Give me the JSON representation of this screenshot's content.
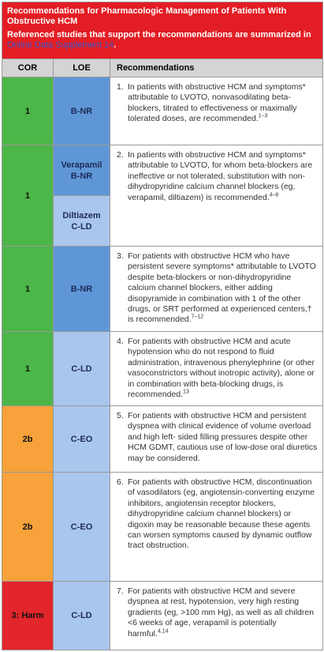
{
  "header": {
    "title": "Recommendations for Pharmacologic Management of Patients With Obstructive HCM",
    "subtitle": "Referenced studies that support the recommendations are summarized in ",
    "link": "Online Data Supplement 14",
    "subtitle_end": "."
  },
  "table": {
    "columns": [
      "COR",
      "LOE",
      "Recommendations"
    ],
    "rows": [
      {
        "cor": "1",
        "cor_color": "#4cb648",
        "loe": [
          {
            "text": "B-NR",
            "color": "#5f97d6"
          }
        ],
        "number": "1.",
        "text": "In patients with obstructive HCM and symptoms* attributable to LVOTO, nonvasodilating beta-blockers, titrated to effectiveness or maximally tolerated doses, are recommended.",
        "sup": "1–3"
      },
      {
        "cor": "1",
        "cor_color": "#4cb648",
        "loe": [
          {
            "text": "Verapamil\nB-NR",
            "color": "#5f97d6"
          },
          {
            "text": "Diltiazem\nC-LD",
            "color": "#a9c6ec"
          }
        ],
        "number": "2.",
        "text": "In patients with obstructive HCM and symptoms* attributable to LVOTO, for whom beta-blockers are ineffective or not tolerated, substitution with non-dihydropyridine calcium channel blockers (eg, verapamil, diltiazem) is recommended.",
        "sup": "4–6"
      },
      {
        "cor": "1",
        "cor_color": "#4cb648",
        "loe": [
          {
            "text": "B-NR",
            "color": "#5f97d6"
          }
        ],
        "number": "3.",
        "text": "For patients with obstructive HCM who have persistent severe symptoms* attributable to LVOTO despite beta-blockers or non-dihydropyridine calcium channel blockers, either adding disopyramide in combination with 1 of the other drugs, or SRT performed at experienced centers,† is recommended.",
        "sup": "7–12"
      },
      {
        "cor": "1",
        "cor_color": "#4cb648",
        "loe": [
          {
            "text": "C-LD",
            "color": "#a9c6ec"
          }
        ],
        "number": "4.",
        "text": "For patients with obstructive HCM and acute hypotension who do not respond to fluid administration, intravenous phenylephrine (or other vasoconstrictors without inotropic activity), alone or in combination with beta-blocking drugs, is recommended.",
        "sup": "13"
      },
      {
        "cor": "2b",
        "cor_color": "#f7a23b",
        "loe": [
          {
            "text": "C-EO",
            "color": "#a9c6ec"
          }
        ],
        "number": "5.",
        "text": "For patients with obstructive HCM and persistent dyspnea with clinical evidence of volume overload and high left- sided filling pressures despite other HCM GDMT, cautious use of low-dose oral diuretics may be considered."
      },
      {
        "cor": "2b",
        "cor_color": "#f7a23b",
        "loe": [
          {
            "text": "C-EO",
            "color": "#a9c6ec"
          }
        ],
        "number": "6.",
        "text": "For patients with obstructive HCM, discontinuation of vasodilators (eg, angiotensin-converting enzyme inhibitors, angiotensin receptor blockers, dihydropyridine calcium channel blockers) or digoxin may be reasonable because these agents can worsen symptoms caused by dynamic outflow tract obstruction."
      },
      {
        "cor": "3: Harm",
        "cor_color": "#e2262b",
        "loe": [
          {
            "text": "C-LD",
            "color": "#a9c6ec"
          }
        ],
        "number": "7.",
        "text": "For patients with obstructive HCM and severe dyspnea at rest, hypotension, very high resting gradients (eg, >100 mm Hg), as well as all children <6 weeks of age, verapamil is potentially harmful.",
        "sup": "4,14"
      }
    ]
  }
}
